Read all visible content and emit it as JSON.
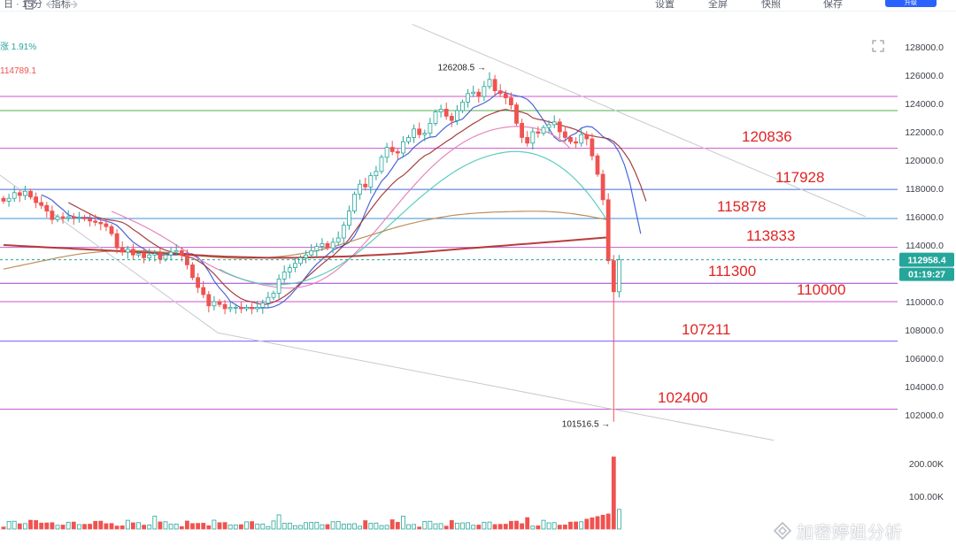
{
  "toolbar": {
    "left_fragment": "日 · 15分 · 指标",
    "right_items": [
      "设置",
      "全屏",
      "快照",
      "保存"
    ],
    "button_label": "升级"
  },
  "info": {
    "change_text": "涨 1.91%",
    "ma_value": "114789.1"
  },
  "overlay_levels": [
    {
      "label": "120836",
      "value": 120836
    },
    {
      "label": "117928",
      "value": 117928
    },
    {
      "label": "115878",
      "value": 115878
    },
    {
      "label": "113833",
      "value": 113833
    },
    {
      "label": "111300",
      "value": 111300
    },
    {
      "label": "110000",
      "value": 110000
    },
    {
      "label": "107211",
      "value": 107211
    },
    {
      "label": "102400",
      "value": 102400
    }
  ],
  "watermark": "加密婷姐分析",
  "colors": {
    "up": "#26a69a",
    "down": "#ef5350",
    "overlay_text": "#e02424",
    "price_tag": "#26a69a",
    "accent": "#2962ff"
  },
  "chart_data": {
    "type": "candlestick",
    "y_axis": {
      "min": 100000,
      "max": 129000,
      "ticks": [
        128000,
        126000,
        124000,
        122000,
        120000,
        118000,
        116000,
        114000,
        112000,
        110000,
        108000,
        106000,
        104000,
        102000
      ],
      "tick_labels": [
        "128000.0",
        "126000.0",
        "124000.0",
        "122000.0",
        "120000.0",
        "118000.0",
        "116000.0",
        "114000.0",
        "112000.0",
        "110000.0",
        "108000.0",
        "106000.0",
        "104000.0",
        "102000.0"
      ]
    },
    "volume_axis": {
      "tick_labels": [
        "200.00K",
        "100.00K"
      ],
      "ticks": [
        200000,
        100000
      ],
      "max": 230000
    },
    "current_price": {
      "label": "112958.4",
      "value": 112958.4
    },
    "countdown": "01:19:27",
    "annotations": [
      {
        "label": "126208.5 →",
        "value": 126208.5,
        "kind": "high"
      },
      {
        "label": "101516.5 →",
        "value": 101516.5,
        "kind": "low"
      }
    ],
    "horizontal_lines": [
      {
        "value": 124500,
        "color": "#d050d0"
      },
      {
        "value": 123500,
        "color": "#4caf50"
      },
      {
        "value": 120836,
        "color": "#d050d0"
      },
      {
        "value": 117928,
        "color": "#3d6fd8"
      },
      {
        "value": 115878,
        "color": "#3d8fd8"
      },
      {
        "value": 113833,
        "color": "#c060c8"
      },
      {
        "value": 111300,
        "color": "#9c3fd6"
      },
      {
        "value": 110000,
        "color": "#d050d0"
      },
      {
        "value": 107211,
        "color": "#7e57ff"
      },
      {
        "value": 102400,
        "color": "#c050c8"
      }
    ],
    "closes": [
      117100,
      117300,
      117700,
      117500,
      117800,
      117400,
      117000,
      116800,
      116400,
      115800,
      116000,
      115900,
      116000,
      115900,
      115950,
      115850,
      115700,
      115600,
      115500,
      115300,
      114800,
      113800,
      113500,
      113700,
      113300,
      113400,
      113100,
      113300,
      113400,
      113000,
      113300,
      113500,
      113600,
      113300,
      112600,
      111700,
      111000,
      110500,
      109700,
      110000,
      109800,
      109500,
      109600,
      109600,
      109500,
      109600,
      109500,
      109600,
      109900,
      110300,
      110600,
      111600,
      112100,
      112400,
      112700,
      113100,
      113300,
      113600,
      113900,
      114100,
      113800,
      114200,
      114500,
      115400,
      116400,
      117600,
      118300,
      118100,
      118900,
      119200,
      120200,
      120900,
      120600,
      120500,
      121300,
      121600,
      122200,
      121800,
      121900,
      122600,
      123400,
      123600,
      123100,
      122800,
      123500,
      124100,
      124700,
      124800,
      124500,
      125200,
      125700,
      124900,
      124700,
      124400,
      123900,
      122600,
      121600,
      121200,
      122000,
      121900,
      122300,
      122500,
      122700,
      122000,
      121600,
      121300,
      121200,
      121800,
      121500,
      120300,
      119000,
      117200,
      112900
    ],
    "mas": [
      {
        "name": "MA5",
        "color": "#3557d6",
        "start": 7,
        "values": [
          117550,
          117380,
          117160,
          116810,
          116500,
          116140,
          116000,
          115940,
          115960,
          115940,
          115890,
          115790,
          115680,
          115580,
          115390,
          115020,
          114580,
          114210,
          113950,
          113740,
          113460,
          113400,
          113260,
          113300,
          113300,
          113300,
          113370,
          113430,
          113370,
          113140,
          112700,
          112130,
          111460,
          110950,
          110540,
          110020,
          109780,
          109560,
          109580,
          109560,
          109550,
          109560,
          109560,
          109640,
          109800,
          110050,
          110400,
          110840,
          111240,
          111750,
          112240,
          112650,
          112980,
          113320,
          113640,
          113820,
          113980,
          114180,
          114640,
          115360,
          116300,
          117180,
          117860,
          118500,
          118900,
          119440,
          120020,
          120240,
          120480,
          120900,
          121220,
          121480,
          121620,
          121660,
          122040,
          122380,
          122640,
          122760,
          122900,
          123300,
          123710,
          123860,
          124040,
          124260,
          124580,
          124870,
          124760,
          124640,
          124550,
          124460,
          124300,
          123920,
          123380,
          122820,
          122240,
          121620,
          121340,
          121380,
          121720,
          121900,
          122260,
          122380,
          122340,
          122040,
          121660,
          121440,
          121160,
          120560,
          119660,
          118380,
          116580,
          114800
        ]
      },
      {
        "name": "MA10",
        "color": "#9c2a2a",
        "start": 12,
        "values": [
          117000,
          116800,
          116600,
          116400,
          116200,
          116000,
          115900,
          115800,
          115750,
          115700,
          115600,
          115400,
          115100,
          114850,
          114560,
          114280,
          114030,
          113790,
          113640,
          113520,
          113380,
          113270,
          113180,
          113080,
          112880,
          112640,
          112320,
          111960,
          111540,
          111120,
          110760,
          110460,
          110210,
          110060,
          109980,
          109880,
          109790,
          109840,
          109960,
          110140,
          110370,
          110650,
          110960,
          111320,
          111670,
          112000,
          112330,
          112660,
          112970,
          113230,
          113600,
          113980,
          114410,
          114950,
          115480,
          116000,
          116520,
          117010,
          117500,
          117900,
          118320,
          118670,
          118920,
          119260,
          119640,
          120010,
          120310,
          120500,
          120790,
          121040,
          121310,
          121550,
          121840,
          122070,
          122330,
          122580,
          122790,
          123050,
          123220,
          123360,
          123500,
          123590,
          123480,
          123460,
          123390,
          123260,
          122990,
          122880,
          122820,
          122700,
          122610,
          122500,
          122380,
          122280,
          122150,
          121960,
          121780,
          121720,
          121640,
          121580,
          121520,
          121320,
          120980,
          120500,
          119930,
          119130,
          118200,
          117100
        ]
      },
      {
        "name": "MA30",
        "color": "#e37bb6",
        "start": 20,
        "values": [
          116380,
          116220,
          116050,
          115880,
          115700,
          115520,
          115330,
          115130,
          114920,
          114700,
          114470,
          114240,
          114000,
          113760,
          113520,
          113280,
          113050,
          112830,
          112620,
          112420,
          112230,
          112050,
          111890,
          111740,
          111610,
          111490,
          111380,
          111280,
          111190,
          111110,
          111050,
          111000,
          110970,
          110960,
          110980,
          111030,
          111110,
          111220,
          111370,
          111560,
          111780,
          112040,
          112330,
          112660,
          113010,
          113380,
          113770,
          114180,
          114610,
          115050,
          115500,
          115960,
          116420,
          116880,
          117330,
          117770,
          118200,
          118620,
          119020,
          119400,
          119760,
          120100,
          120410,
          120700,
          120970,
          121220,
          121440,
          121630,
          121800,
          121950,
          122080,
          122180,
          122260,
          122320,
          122360,
          122380,
          122370,
          122340,
          122290,
          122200,
          122080,
          121920,
          121720,
          121480,
          121180,
          120800
        ]
      },
      {
        "name": "MA60",
        "color": "#4cc8b8",
        "start": 40,
        "values": [
          112300,
          112100,
          111920,
          111760,
          111620,
          111500,
          111400,
          111320,
          111260,
          111220,
          111200,
          111200,
          111220,
          111260,
          111320,
          111400,
          111500,
          111620,
          111760,
          111920,
          112100,
          112300,
          112520,
          112760,
          113020,
          113300,
          113590,
          113900,
          114220,
          114550,
          114890,
          115240,
          115590,
          115940,
          116290,
          116640,
          116980,
          117310,
          117630,
          117940,
          118240,
          118530,
          118800,
          119060,
          119300,
          119520,
          119720,
          119900,
          120060,
          120200,
          120320,
          120420,
          120500,
          120560,
          120600,
          120610,
          120590,
          120540,
          120460,
          120350,
          120200,
          120020,
          119810,
          119560,
          119280,
          118960,
          118600,
          118200,
          117760,
          117280,
          116760,
          116200,
          115600
        ]
      },
      {
        "name": "MA120",
        "color": "#b5834a",
        "start": 0,
        "values": [
          112300,
          112380,
          112460,
          112540,
          112620,
          112700,
          112780,
          112860,
          112940,
          113020,
          113100,
          113170,
          113240,
          113300,
          113360,
          113410,
          113450,
          113490,
          113520,
          113550,
          113570,
          113590,
          113600,
          113610,
          113610,
          113600,
          113590,
          113570,
          113550,
          113520,
          113490,
          113450,
          113410,
          113370,
          113330,
          113290,
          113250,
          113210,
          113180,
          113150,
          113120,
          113100,
          113080,
          113070,
          113060,
          113060,
          113070,
          113080,
          113100,
          113120,
          113150,
          113180,
          113220,
          113270,
          113320,
          113380,
          113450,
          113520,
          113600,
          113690,
          113780,
          113880,
          113990,
          114100,
          114220,
          114340,
          114460,
          114580,
          114700,
          114820,
          114940,
          115060,
          115170,
          115280,
          115380,
          115480,
          115570,
          115660,
          115740,
          115820,
          115890,
          115960,
          116020,
          116080,
          116130,
          116170,
          116210,
          116240,
          116270,
          116290,
          116310,
          116330,
          116340,
          116350,
          116360,
          116370,
          116380,
          116390,
          116390,
          116390,
          116380,
          116360,
          116340,
          116310,
          116270,
          116230,
          116180,
          116120,
          116060,
          115990,
          115920,
          115850,
          115780
        ]
      },
      {
        "name": "MA200",
        "color": "#b0292a",
        "start": 0,
        "values": [
          114000,
          113980,
          113960,
          113940,
          113920,
          113900,
          113880,
          113860,
          113840,
          113820,
          113800,
          113780,
          113760,
          113740,
          113720,
          113700,
          113680,
          113660,
          113640,
          113620,
          113600,
          113580,
          113560,
          113540,
          113520,
          113500,
          113480,
          113460,
          113440,
          113420,
          113400,
          113380,
          113360,
          113340,
          113320,
          113300,
          113280,
          113260,
          113240,
          113220,
          113200,
          113180,
          113170,
          113160,
          113150,
          113140,
          113130,
          113120,
          113110,
          113100,
          113100,
          113100,
          113100,
          113100,
          113100,
          113110,
          113120,
          113130,
          113140,
          113150,
          113160,
          113170,
          113180,
          113190,
          113200,
          113220,
          113240,
          113260,
          113280,
          113300,
          113320,
          113340,
          113360,
          113380,
          113400,
          113430,
          113460,
          113490,
          113520,
          113550,
          113580,
          113610,
          113640,
          113670,
          113700,
          113730,
          113760,
          113790,
          113820,
          113850,
          113880,
          113910,
          113940,
          113970,
          114000,
          114030,
          114060,
          114090,
          114120,
          114150,
          114180,
          114210,
          114240,
          114270,
          114300,
          114330,
          114360,
          114390,
          114420,
          114450,
          114480,
          114510,
          114540
        ]
      }
    ],
    "trendlines": [
      {
        "from": {
          "bar": -2,
          "value": 119400
        },
        "to": {
          "bar": 40,
          "value": 107800
        }
      },
      {
        "from": {
          "bar": 76,
          "value": 129600
        },
        "to": {
          "bar": 160,
          "value": 116000
        }
      },
      {
        "from": {
          "bar": 40,
          "value": 107800
        },
        "to": {
          "bar": 143,
          "value": 100200
        }
      }
    ]
  }
}
